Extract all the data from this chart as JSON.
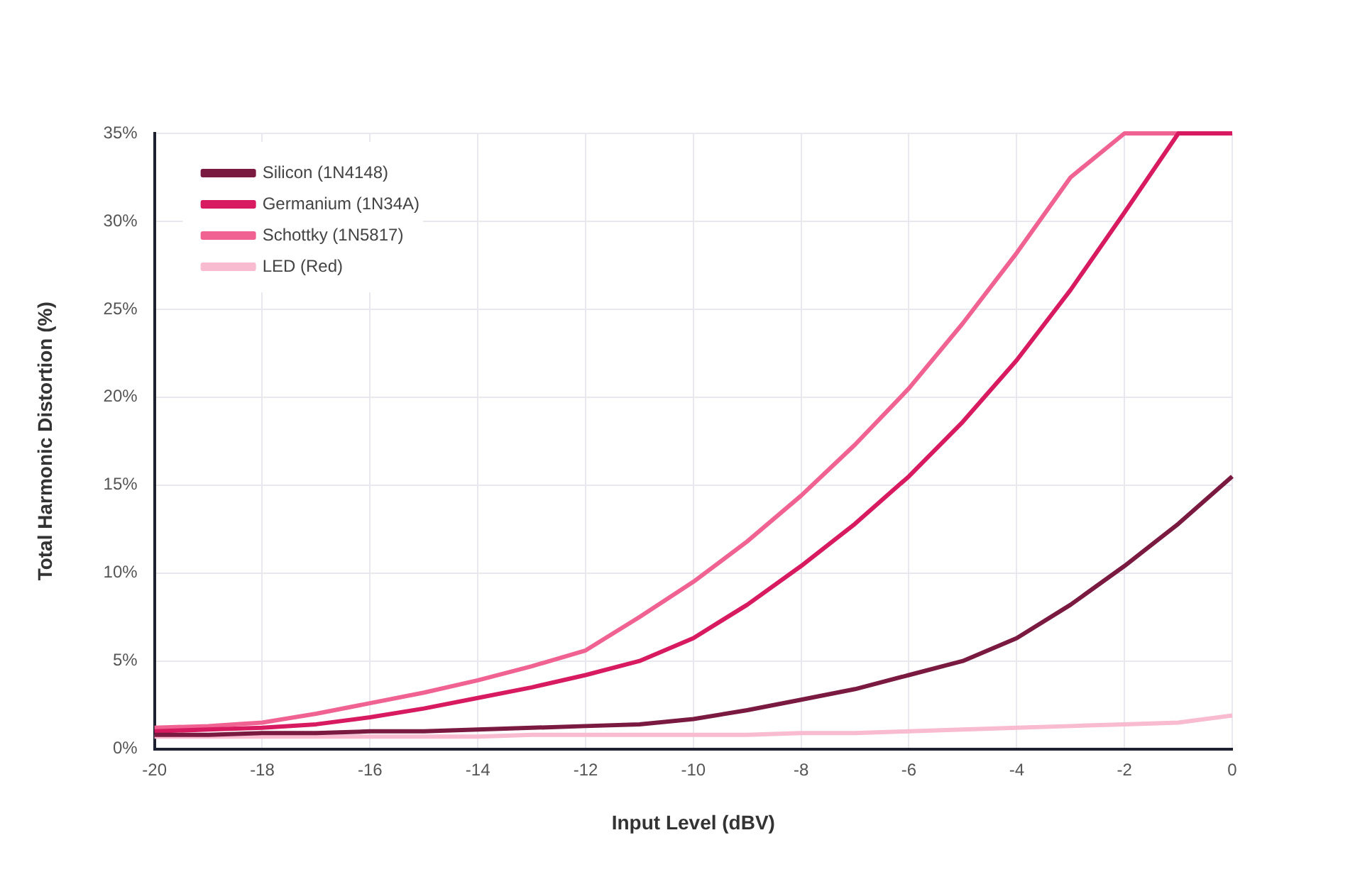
{
  "chart_data": {
    "type": "line",
    "xlabel": "Input Level (dBV)",
    "ylabel": "Total Harmonic Distortion (%)",
    "x": [
      -20,
      -19,
      -18,
      -17,
      -16,
      -15,
      -14,
      -13,
      -12,
      -11,
      -10,
      -9,
      -8,
      -7,
      -6,
      -5,
      -4,
      -3,
      -2,
      -1,
      0
    ],
    "series": [
      {
        "name": "Silicon (1N4148)",
        "color": "#7b1a40",
        "values": [
          0.8,
          0.8,
          0.9,
          0.9,
          1.0,
          1.0,
          1.1,
          1.2,
          1.3,
          1.4,
          1.7,
          2.2,
          2.8,
          3.4,
          4.2,
          5.0,
          6.3,
          8.2,
          10.4,
          12.8,
          15.5
        ]
      },
      {
        "name": "Germanium (1N34A)",
        "color": "#d81b60",
        "values": [
          1.0,
          1.1,
          1.2,
          1.4,
          1.8,
          2.3,
          2.9,
          3.5,
          4.2,
          5.0,
          6.3,
          8.2,
          10.4,
          12.8,
          15.5,
          18.6,
          22.1,
          26.1,
          30.5,
          35,
          35
        ]
      },
      {
        "name": "Schottky (1N5817)",
        "color": "#f06292",
        "values": [
          1.2,
          1.3,
          1.5,
          2.0,
          2.6,
          3.2,
          3.9,
          4.7,
          5.6,
          7.5,
          9.5,
          11.8,
          14.4,
          17.3,
          20.5,
          24.2,
          28.2,
          32.5,
          35,
          35,
          35
        ]
      },
      {
        "name": "LED (Red)",
        "color": "#f8bbd0",
        "values": [
          0.7,
          0.7,
          0.7,
          0.7,
          0.7,
          0.7,
          0.7,
          0.8,
          0.8,
          0.8,
          0.8,
          0.8,
          0.9,
          0.9,
          1.0,
          1.1,
          1.2,
          1.3,
          1.4,
          1.5,
          1.9
        ]
      }
    ],
    "xlim": [
      -20,
      0
    ],
    "xticks": [
      -20,
      -18,
      -16,
      -14,
      -12,
      -10,
      -8,
      -6,
      -4,
      -2,
      0
    ],
    "ylim": [
      0,
      35
    ],
    "yticks": [
      {
        "value": 0,
        "label": "0%"
      },
      {
        "value": 5,
        "label": "5%"
      },
      {
        "value": 10,
        "label": "10%"
      },
      {
        "value": 15,
        "label": "15%"
      },
      {
        "value": 20,
        "label": "20%"
      },
      {
        "value": 25,
        "label": "25%"
      },
      {
        "value": 30,
        "label": "30%"
      },
      {
        "value": 35,
        "label": "35%"
      }
    ],
    "grid": true,
    "legend": "top left",
    "marker": "none",
    "line_style": "solid"
  }
}
